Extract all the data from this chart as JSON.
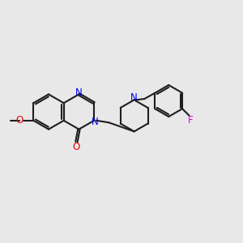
{
  "bg": "#e8e8e8",
  "bond_color": "#1e1e1e",
  "N_color": "#0000ee",
  "O_color": "#dd0000",
  "F_color": "#dd00dd",
  "lw": 1.5,
  "dbo": 0.04,
  "fs": 8.5,
  "xlim": [
    0,
    10
  ],
  "ylim": [
    0,
    10
  ]
}
